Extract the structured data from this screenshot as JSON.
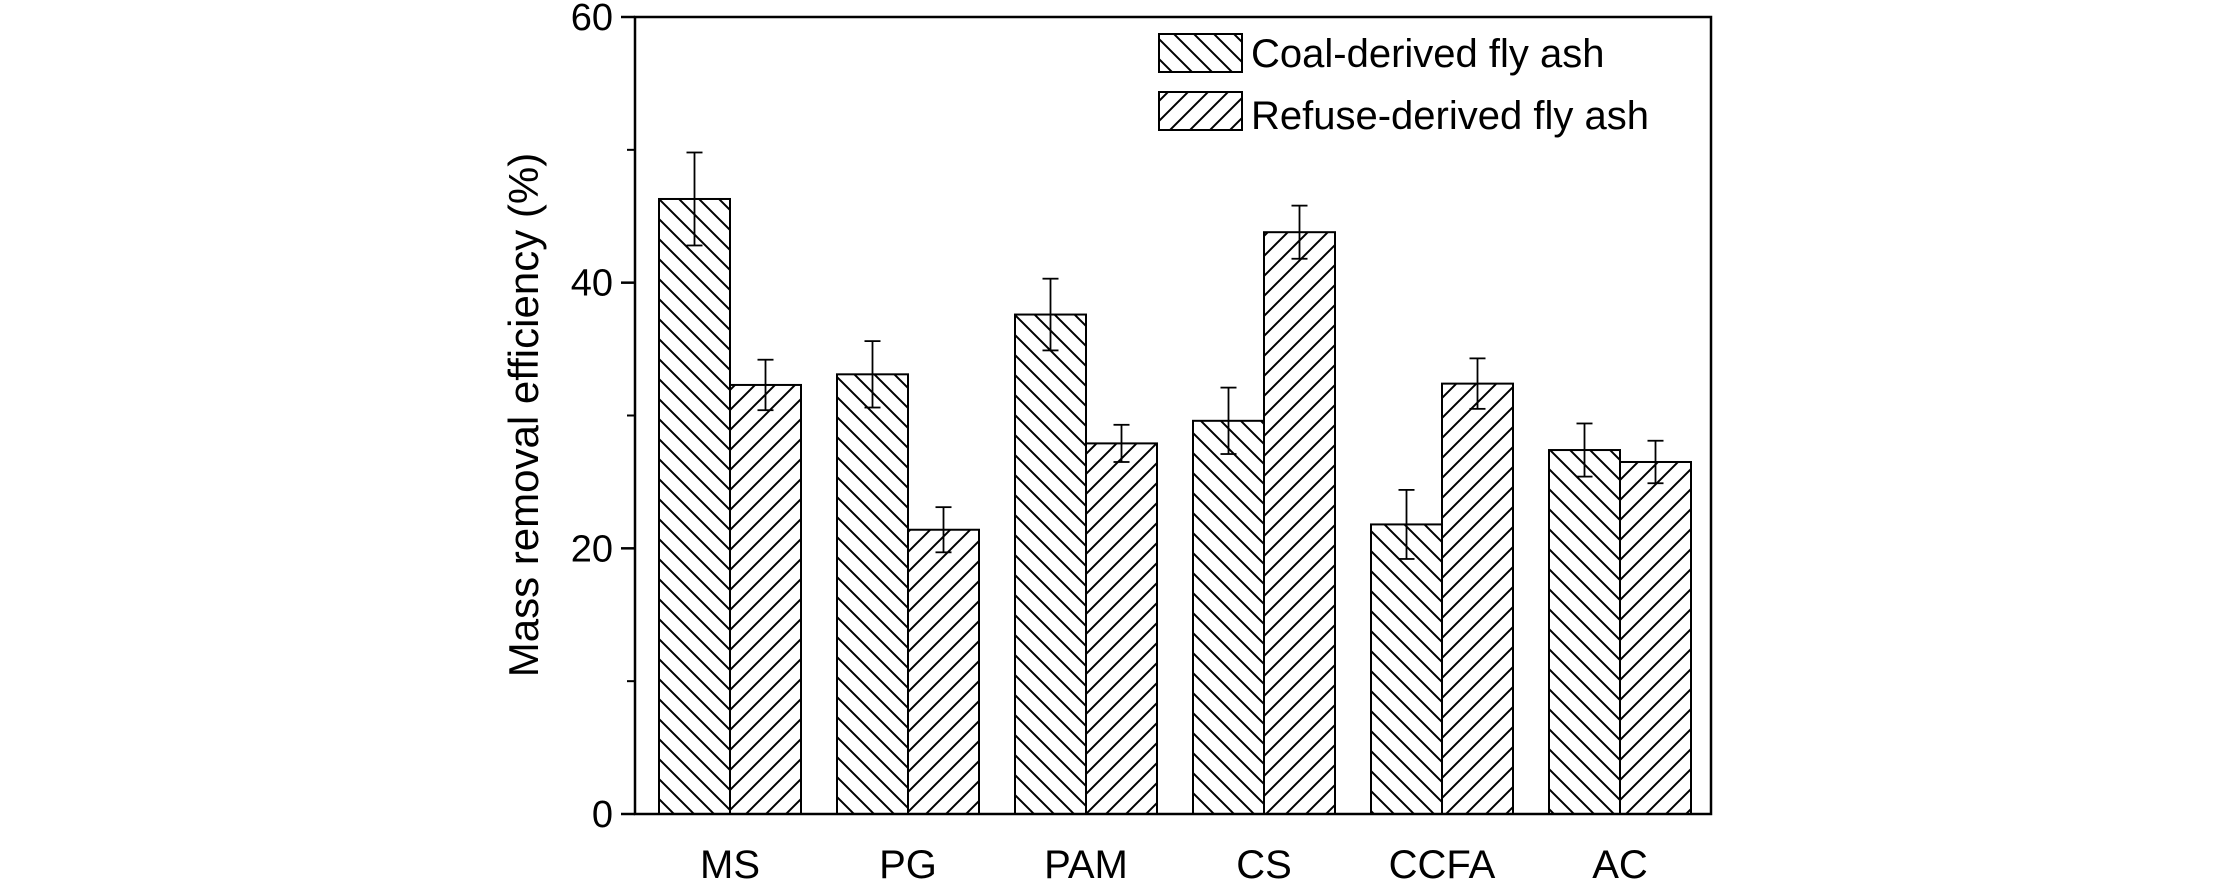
{
  "chart_data": {
    "type": "bar",
    "title": "",
    "xlabel": "",
    "ylabel": "Mass removal efficiency (%)",
    "ylim": [
      0,
      60
    ],
    "yticks": [
      0,
      20,
      40,
      60
    ],
    "grid": false,
    "legend_position": "top-right",
    "categories": [
      "MS",
      "PG",
      "PAM",
      "CS",
      "CCFA",
      "AC"
    ],
    "series": [
      {
        "name": "Coal-derived fly ash",
        "pattern": "diagonal-backslash",
        "values": [
          46.3,
          33.1,
          37.6,
          29.6,
          21.8,
          27.4
        ],
        "errors": [
          3.5,
          2.5,
          2.7,
          2.5,
          2.6,
          2.0
        ]
      },
      {
        "name": "Refuse-derived fly ash",
        "pattern": "diagonal-slash",
        "values": [
          32.3,
          21.4,
          27.9,
          43.8,
          32.4,
          26.5
        ],
        "errors": [
          1.9,
          1.7,
          1.4,
          2.0,
          1.9,
          1.6
        ]
      }
    ],
    "colors": {
      "bar_fill": "#ffffff",
      "stroke": "#000000"
    }
  }
}
